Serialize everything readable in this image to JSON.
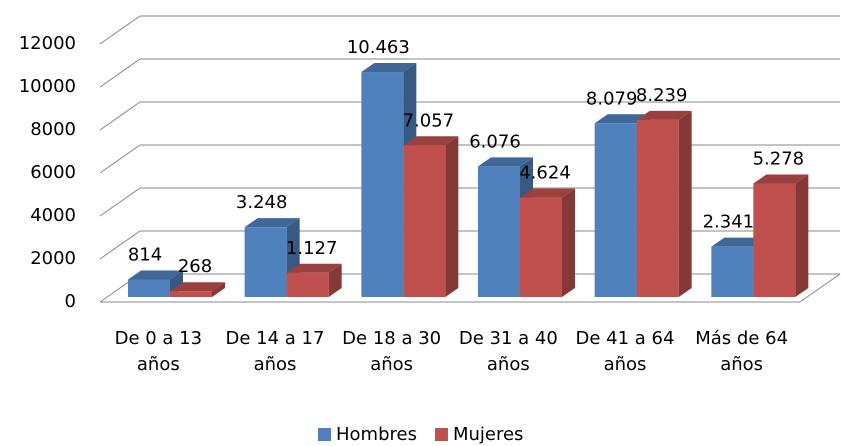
{
  "chart_data": {
    "type": "bar3d",
    "categories": [
      "De 0 a 13 años",
      "De 14 a 17 años",
      "De 18 a 30 años",
      "De 31 a 40 años",
      "De 41 a 64 años",
      "Más de 64 años"
    ],
    "series": [
      {
        "name": "Hombres",
        "color": "#4f81bd",
        "values": [
          814,
          3248,
          10463,
          6076,
          8079,
          2341
        ],
        "value_labels": [
          "814",
          "3.248",
          "10.463",
          "6.076",
          "8.079",
          "2.341"
        ]
      },
      {
        "name": "Mujeres",
        "color": "#c0504d",
        "values": [
          268,
          1127,
          7057,
          4624,
          8239,
          5278
        ],
        "value_labels": [
          "268",
          "1.127",
          "7.057",
          "4.624",
          "8.239",
          "5.278"
        ]
      }
    ],
    "ylim": [
      0,
      12000
    ],
    "yticks": [
      0,
      2000,
      4000,
      6000,
      8000,
      10000,
      12000
    ],
    "grid": true,
    "legend": "bottom"
  }
}
